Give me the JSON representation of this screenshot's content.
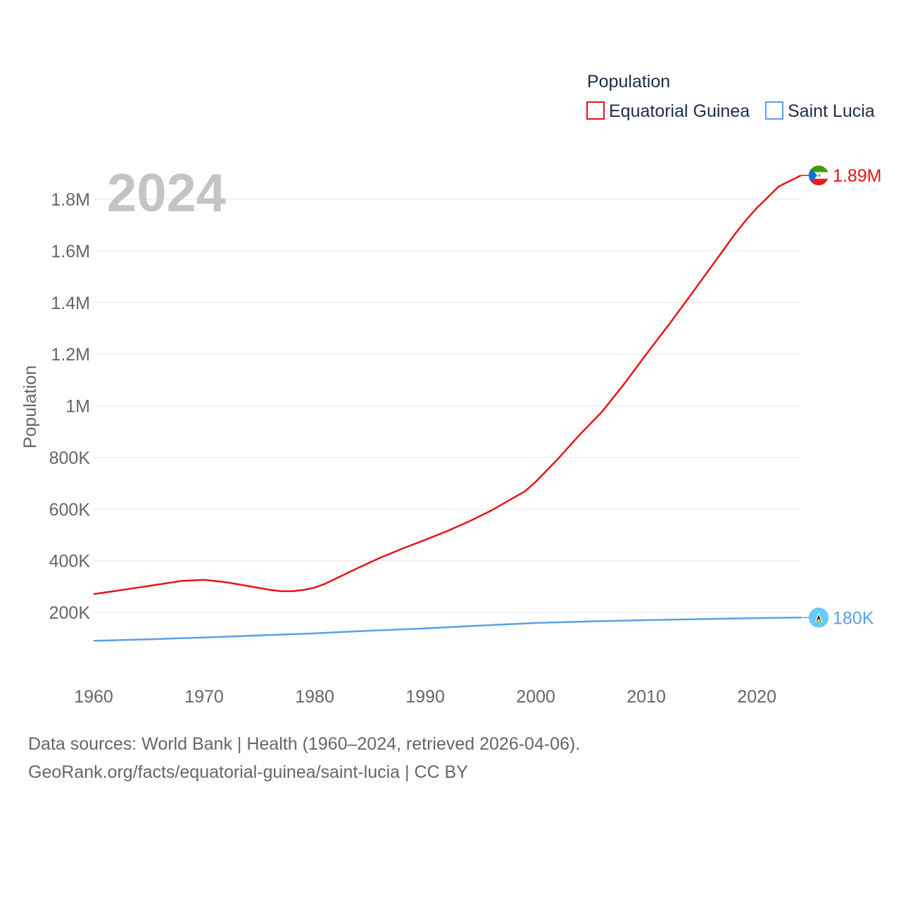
{
  "chart_data": {
    "type": "line",
    "title": "",
    "current_year_label": "2024",
    "xlabel": "",
    "ylabel": "Population",
    "xlim": [
      1960,
      2024
    ],
    "ylim": [
      0,
      1900000
    ],
    "x_ticks": [
      1960,
      1970,
      1980,
      1990,
      2000,
      2010,
      2020
    ],
    "y_ticks": [
      {
        "value": 200000,
        "label": "200K"
      },
      {
        "value": 400000,
        "label": "400K"
      },
      {
        "value": 600000,
        "label": "600K"
      },
      {
        "value": 800000,
        "label": "800K"
      },
      {
        "value": 1000000,
        "label": "1M"
      },
      {
        "value": 1200000,
        "label": "1.2M"
      },
      {
        "value": 1400000,
        "label": "1.4M"
      },
      {
        "value": 1600000,
        "label": "1.6M"
      },
      {
        "value": 1800000,
        "label": "1.8M"
      }
    ],
    "grid": true,
    "legend": {
      "title": "Population",
      "position": "top-right"
    },
    "series": [
      {
        "name": "Equatorial Guinea",
        "color": "#e8121a",
        "end_label": "1.89M",
        "flag_icon": "equatorial-guinea-flag-icon",
        "x": [
          1960,
          1962,
          1964,
          1966,
          1968,
          1970,
          1972,
          1974,
          1976,
          1977,
          1978,
          1979,
          1980,
          1981,
          1982,
          1984,
          1986,
          1988,
          1990,
          1992,
          1994,
          1996,
          1998,
          1999,
          2000,
          2002,
          2004,
          2006,
          2008,
          2010,
          2012,
          2014,
          2016,
          2018,
          2019,
          2020,
          2022,
          2024
        ],
        "y": [
          271000,
          283000,
          296000,
          309000,
          322000,
          326000,
          317000,
          302000,
          287000,
          282000,
          282000,
          287000,
          296000,
          312000,
          333000,
          374000,
          413000,
          448000,
          481000,
          515000,
          553000,
          595000,
          644000,
          668000,
          706000,
          794000,
          889000,
          977000,
          1085000,
          1200000,
          1312000,
          1428000,
          1546000,
          1664000,
          1718000,
          1766000,
          1850000,
          1892000
        ]
      },
      {
        "name": "Saint Lucia",
        "color": "#5aa0e6",
        "end_label": "180K",
        "flag_icon": "saint-lucia-flag-icon",
        "x": [
          1960,
          1965,
          1970,
          1975,
          1980,
          1985,
          1990,
          1995,
          2000,
          2005,
          2010,
          2015,
          2020,
          2024
        ],
        "y": [
          90000,
          96000,
          103000,
          111000,
          119000,
          129000,
          138000,
          149000,
          159000,
          165000,
          170000,
          174000,
          178000,
          180000
        ]
      }
    ]
  },
  "footer": {
    "line1": "Data sources: World Bank | Health (1960–2024, retrieved 2026-04-06).",
    "line2": "GeoRank.org/facts/equatorial-guinea/saint-lucia | CC BY"
  }
}
